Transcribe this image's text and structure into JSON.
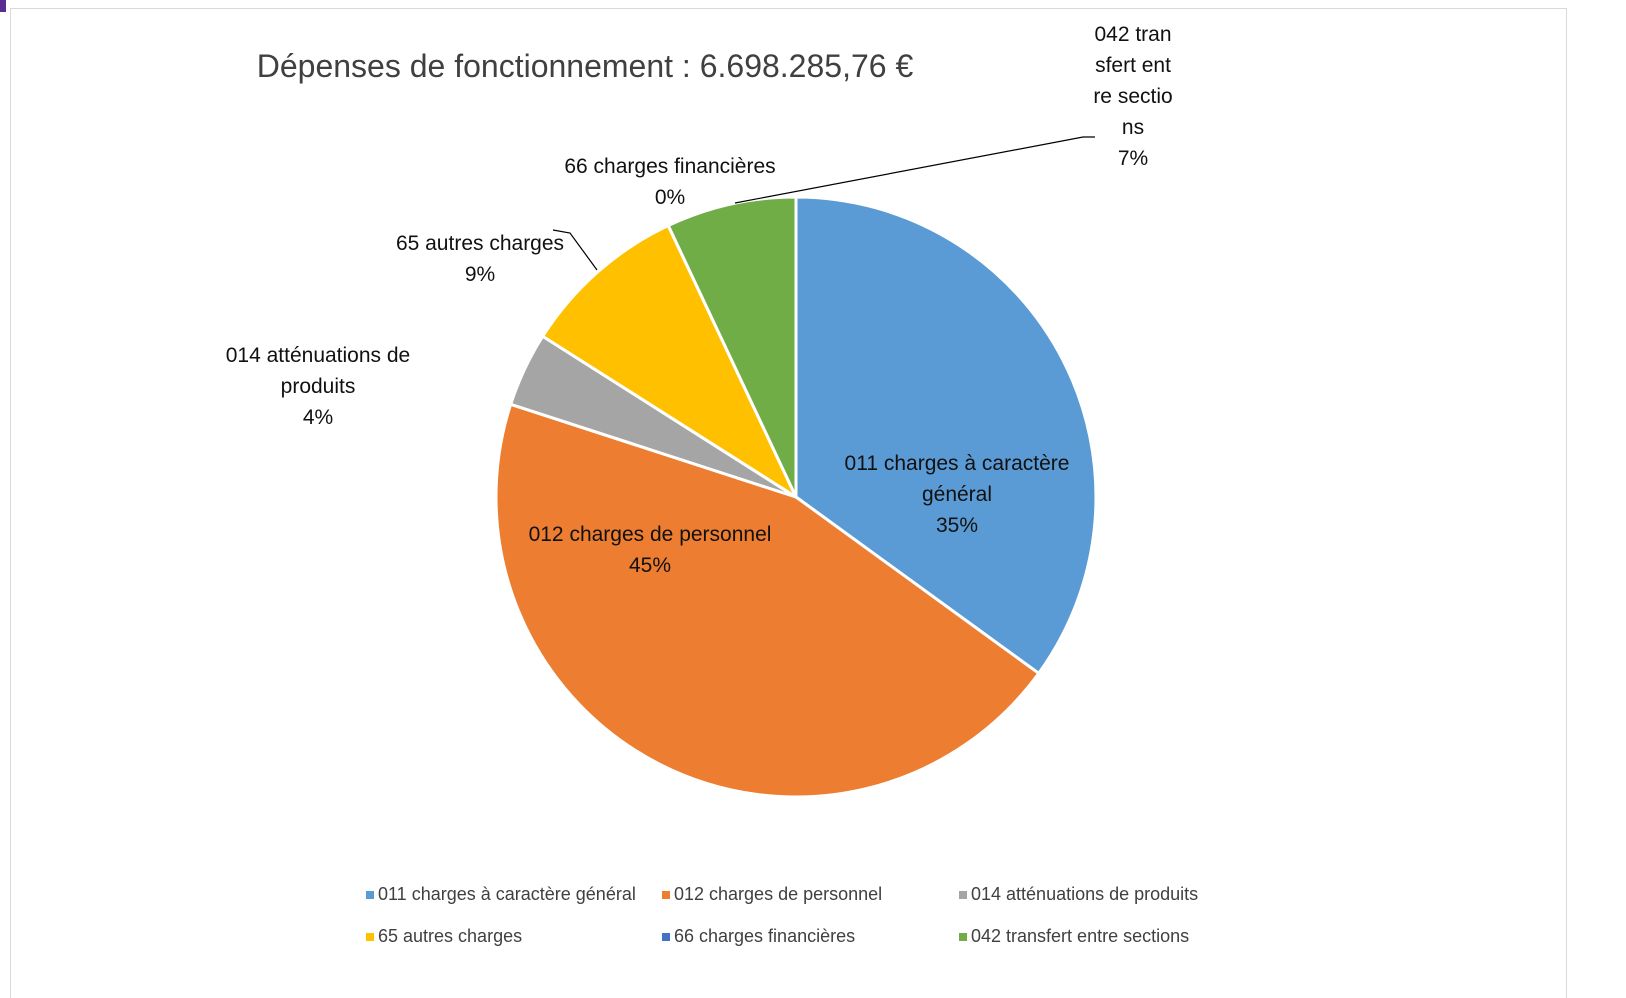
{
  "chart_data": {
    "type": "pie",
    "title": "Dépenses de fonctionnement : 6.698.285,76 €",
    "categories": [
      "011 charges à caractère général",
      "012 charges de personnel",
      "014 atténuations de produits",
      "65 autres charges",
      "66 charges financières",
      "042 transfert entre sections"
    ],
    "values": [
      35,
      45,
      4,
      9,
      0,
      7
    ],
    "value_labels": [
      "35%",
      "45%",
      "4%",
      "9%",
      "0%",
      "7%"
    ],
    "colors": [
      "#5b9bd5",
      "#ed7d31",
      "#a5a5a5",
      "#ffc000",
      "#4472c4",
      "#70ad47"
    ],
    "legend": "bottom"
  }
}
